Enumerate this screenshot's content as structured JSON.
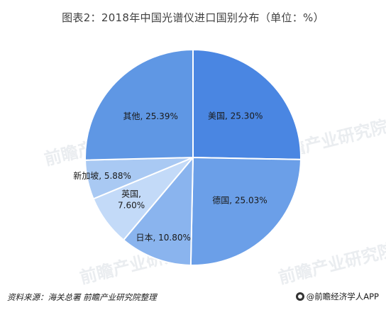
{
  "title": "图表2：2018年中国光谱仪进口国别分布（单位：%）",
  "chart_data": {
    "type": "pie",
    "title": "图表2：2018年中国光谱仪进口国别分布（单位：%）",
    "slices": [
      {
        "label": "美国",
        "value": 25.3,
        "display": "美国, 25.30%",
        "color": "#4a86e2"
      },
      {
        "label": "德国",
        "value": 25.03,
        "display": "德国, 25.03%",
        "color": "#6b9fe8"
      },
      {
        "label": "日本",
        "value": 10.8,
        "display": "日本, 10.80%",
        "color": "#8ab4ee"
      },
      {
        "label": "英国",
        "value": 7.6,
        "display": "英国,\n7.60%",
        "color": "#c3daf8"
      },
      {
        "label": "新加坡",
        "value": 5.88,
        "display": "新加坡, 5.88%",
        "color": "#a9c9f3"
      },
      {
        "label": "其他",
        "value": 25.39,
        "display": "其他, 25.39%",
        "color": "#5f97e4"
      }
    ]
  },
  "footer": {
    "source": "资料来源：海关总署  前瞻产业研究院整理",
    "brand": "@前瞻经济学人APP",
    "brand_icon": "brand-circle-icon"
  },
  "watermark": "前瞻产业研究院"
}
